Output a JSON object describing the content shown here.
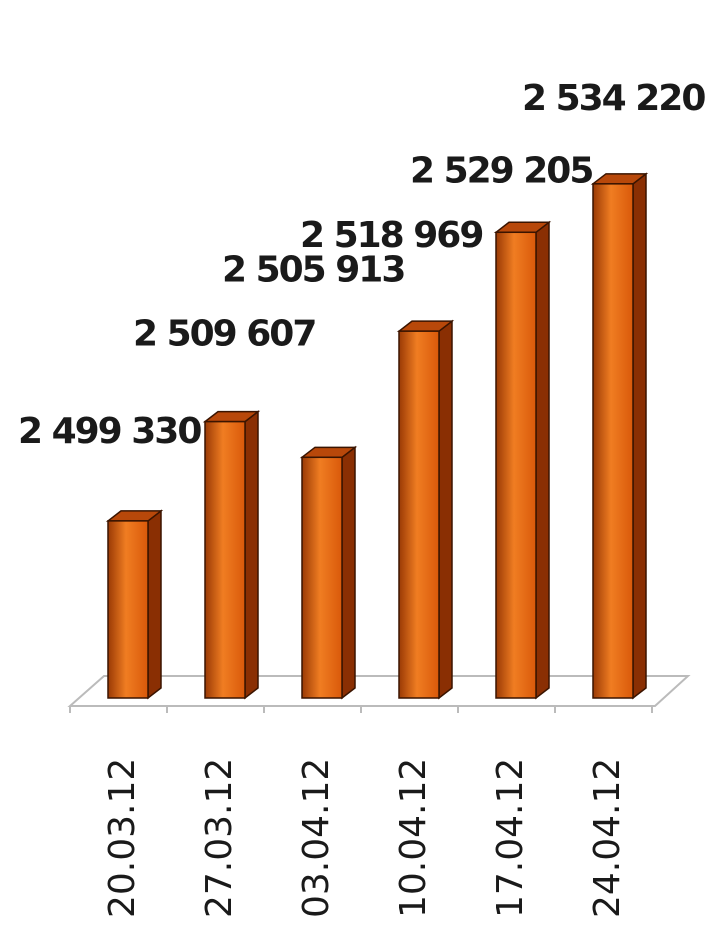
{
  "chart_data": {
    "type": "bar",
    "categories": [
      "20.03.12",
      "27.03.12",
      "03.04.12",
      "10.04.12",
      "17.04.12",
      "24.04.12"
    ],
    "values": [
      2499330,
      2509607,
      2505913,
      2518969,
      2529205,
      2534220
    ],
    "value_labels": [
      "2 499 330",
      "2 509 607",
      "2 505 913",
      "2 518 969",
      "2 529 205",
      "2 534 220"
    ],
    "ylim": [
      2481000,
      2540000
    ],
    "grid": false,
    "legend": "none",
    "colors": {
      "bar_front": "#d9590a",
      "bar_front_light": "#f07d22",
      "bar_front_dark": "#9a3a05",
      "bar_side": "#8a2f03",
      "bar_top": "#b8480a",
      "bar_edge": "#3a1400",
      "floor": "#bbbbbb"
    }
  }
}
